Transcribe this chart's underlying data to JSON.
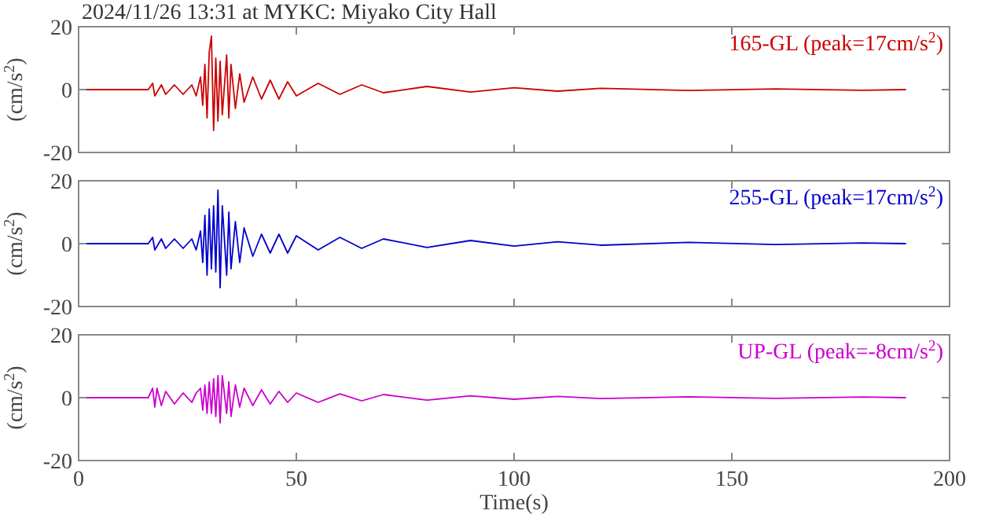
{
  "chart_data": [
    {
      "type": "line",
      "title": "2024/11/26 13:31 at MYKC: Miyako City Hall",
      "ylabel": "(cm/s$^{2}$)",
      "xlim": [
        0,
        200
      ],
      "xticks": [
        0,
        50,
        100,
        150,
        200
      ],
      "ylim": [
        -20,
        20
      ],
      "yticks": [
        -20,
        0,
        20
      ],
      "tick_labels": "y",
      "legend": "top right",
      "grid": false,
      "series": [
        {
          "name": "165-GL (peak=17cm/s$^{2}$)",
          "color": "#cc0000",
          "x": [
            0,
            16,
            17,
            17.5,
            19,
            20,
            22,
            24,
            26,
            27,
            28,
            28.5,
            29,
            29.5,
            30,
            30.5,
            31,
            31.5,
            32,
            32.5,
            33,
            34,
            34.5,
            35,
            36,
            37,
            38,
            40,
            42,
            44,
            46,
            48,
            50,
            55,
            60,
            65,
            70,
            80,
            90,
            100,
            110,
            120,
            140,
            160,
            180,
            190
          ],
          "values": [
            0,
            0,
            2,
            -2,
            1.5,
            -1.5,
            1.5,
            -1.5,
            1.5,
            -2,
            4,
            -5,
            8,
            -9,
            12,
            17,
            -13,
            10,
            -10,
            9,
            -8,
            11,
            -9,
            8,
            -6,
            5,
            -4,
            4,
            -3,
            3,
            -3,
            2.5,
            -2,
            2,
            -1.5,
            1.5,
            -1,
            1,
            -0.8,
            0.6,
            -0.5,
            0.4,
            -0.3,
            0.2,
            -0.2,
            0
          ]
        }
      ]
    },
    {
      "type": "line",
      "ylabel": "(cm/s$^{2}$)",
      "xlim": [
        0,
        200
      ],
      "xticks": [
        0,
        50,
        100,
        150,
        200
      ],
      "ylim": [
        -20,
        20
      ],
      "yticks": [
        -20,
        0,
        20
      ],
      "tick_labels": "y",
      "legend": "top right",
      "grid": false,
      "series": [
        {
          "name": "255-GL (peak=17cm/s$^{2}$)",
          "color": "#0000cc",
          "x": [
            0,
            16,
            17,
            17.5,
            19,
            20,
            22,
            24,
            26,
            27,
            28,
            28.5,
            29,
            29.5,
            30,
            30.5,
            31,
            31.5,
            32,
            32.5,
            33,
            34,
            34.5,
            35,
            36,
            37,
            38,
            40,
            42,
            44,
            46,
            48,
            50,
            55,
            60,
            65,
            70,
            80,
            90,
            100,
            110,
            120,
            140,
            160,
            180,
            190
          ],
          "values": [
            0,
            0,
            2,
            -2,
            1.5,
            -1.5,
            1.5,
            -1.5,
            1.5,
            -2,
            4,
            -6,
            9,
            -10,
            11,
            -8,
            12,
            -9,
            17,
            -14,
            12,
            -10,
            10,
            -8,
            7,
            -6,
            5,
            -4,
            3,
            -3,
            3,
            -3,
            2.5,
            -2,
            2,
            -1.5,
            1.5,
            -1.2,
            1,
            -0.8,
            0.6,
            -0.5,
            0.4,
            -0.3,
            0.2,
            0
          ]
        }
      ]
    },
    {
      "type": "line",
      "ylabel": "(cm/s$^{2}$)",
      "xlabel": "Time(s)",
      "xlim": [
        0,
        200
      ],
      "xticks": [
        0,
        50,
        100,
        150,
        200
      ],
      "ylim": [
        -20,
        20
      ],
      "yticks": [
        -20,
        0,
        20
      ],
      "legend": "top right",
      "grid": false,
      "series": [
        {
          "name": "UP-GL (peak=-8cm/s$^{2}$)",
          "color": "#cc00cc",
          "x": [
            0,
            16,
            17,
            17.5,
            18,
            19,
            20,
            22,
            24,
            26,
            27,
            28,
            28.5,
            29,
            29.5,
            30,
            30.5,
            31,
            31.5,
            32,
            32.5,
            33,
            34,
            34.5,
            35,
            36,
            37,
            38,
            40,
            42,
            44,
            46,
            48,
            50,
            55,
            60,
            65,
            70,
            80,
            90,
            100,
            110,
            120,
            140,
            160,
            180,
            190
          ],
          "values": [
            0,
            0,
            3,
            -3,
            3,
            -2.5,
            2,
            -2,
            1.5,
            -1.5,
            1.5,
            3,
            -4,
            4,
            -5,
            5,
            -5,
            6,
            -6,
            7,
            -8,
            7,
            -5,
            5,
            -6,
            4,
            -3,
            3,
            -2.5,
            2.5,
            -2,
            2,
            -1.5,
            1.5,
            -1.5,
            1.2,
            -1,
            1,
            -0.8,
            0.6,
            -0.5,
            0.4,
            -0.3,
            0.3,
            -0.2,
            0.2,
            0
          ]
        }
      ]
    }
  ]
}
